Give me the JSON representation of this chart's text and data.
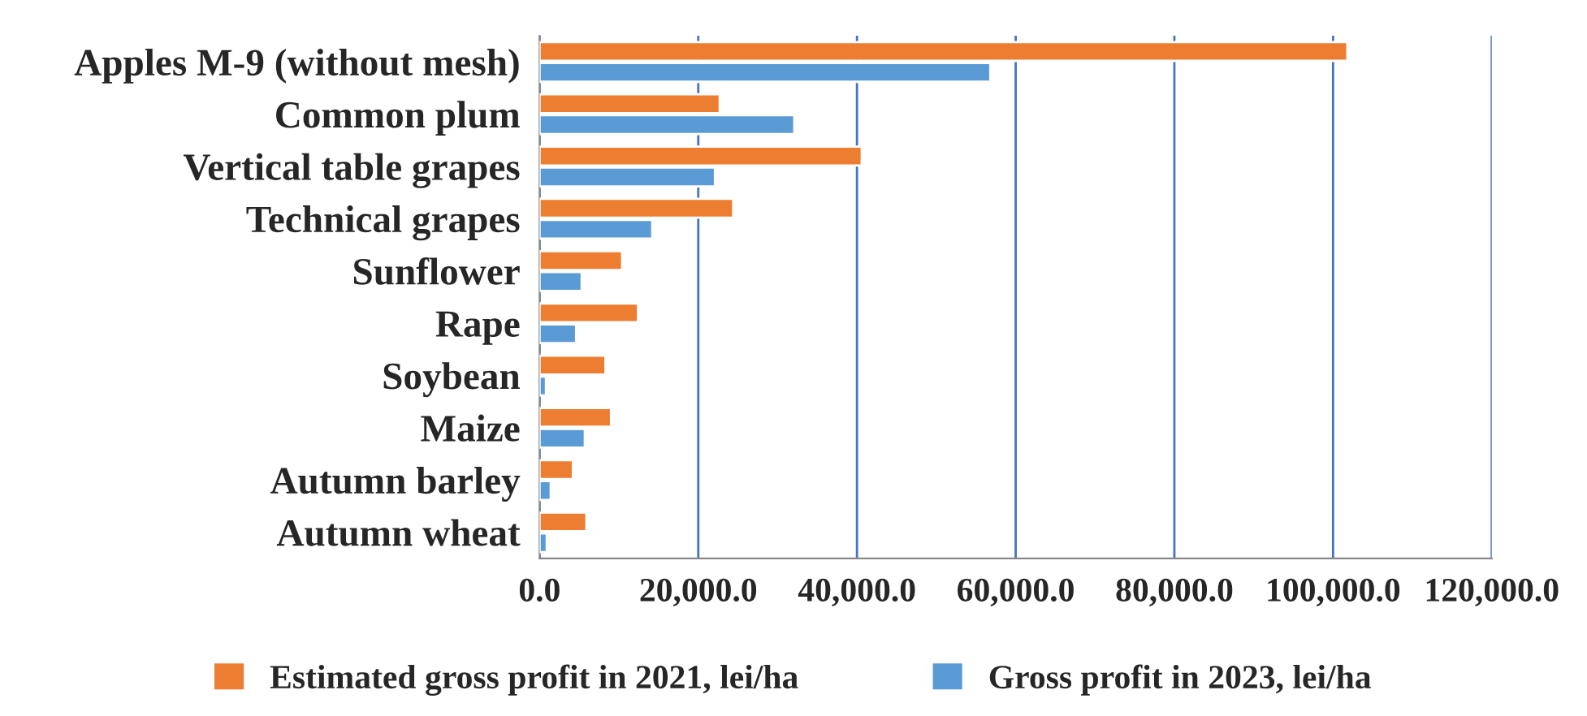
{
  "chart_data": {
    "type": "bar",
    "orientation": "horizontal",
    "categories": [
      "Apples M-9 (without mesh)",
      "Common plum",
      "Vertical table grapes",
      "Technical grapes",
      "Sunflower",
      "Rape",
      "Soybean",
      "Maize",
      "Autumn barley",
      "Autumn wheat"
    ],
    "series": [
      {
        "name": "Estimated gross profit in 2021, lei/ha",
        "color": "#ed7d31",
        "values": [
          101800,
          22700,
          40600,
          24400,
          10400,
          12400,
          8300,
          9000,
          4200,
          5900
        ]
      },
      {
        "name": "Gross profit in 2023, lei/ha",
        "color": "#5b9bd5",
        "values": [
          56800,
          32100,
          22100,
          14200,
          5300,
          4600,
          800,
          5700,
          1400,
          900
        ]
      }
    ],
    "xlim": [
      0,
      120000
    ],
    "xticks": [
      {
        "value": 0,
        "label": "0.0"
      },
      {
        "value": 20000,
        "label": "20,000.0"
      },
      {
        "value": 40000,
        "label": "40,000.0"
      },
      {
        "value": 60000,
        "label": "60,000.0"
      },
      {
        "value": 80000,
        "label": "80,000.0"
      },
      {
        "value": 100000,
        "label": "100,000.0"
      },
      {
        "value": 120000,
        "label": "120,000.0"
      }
    ],
    "grid": "x",
    "legend": "bottom"
  }
}
